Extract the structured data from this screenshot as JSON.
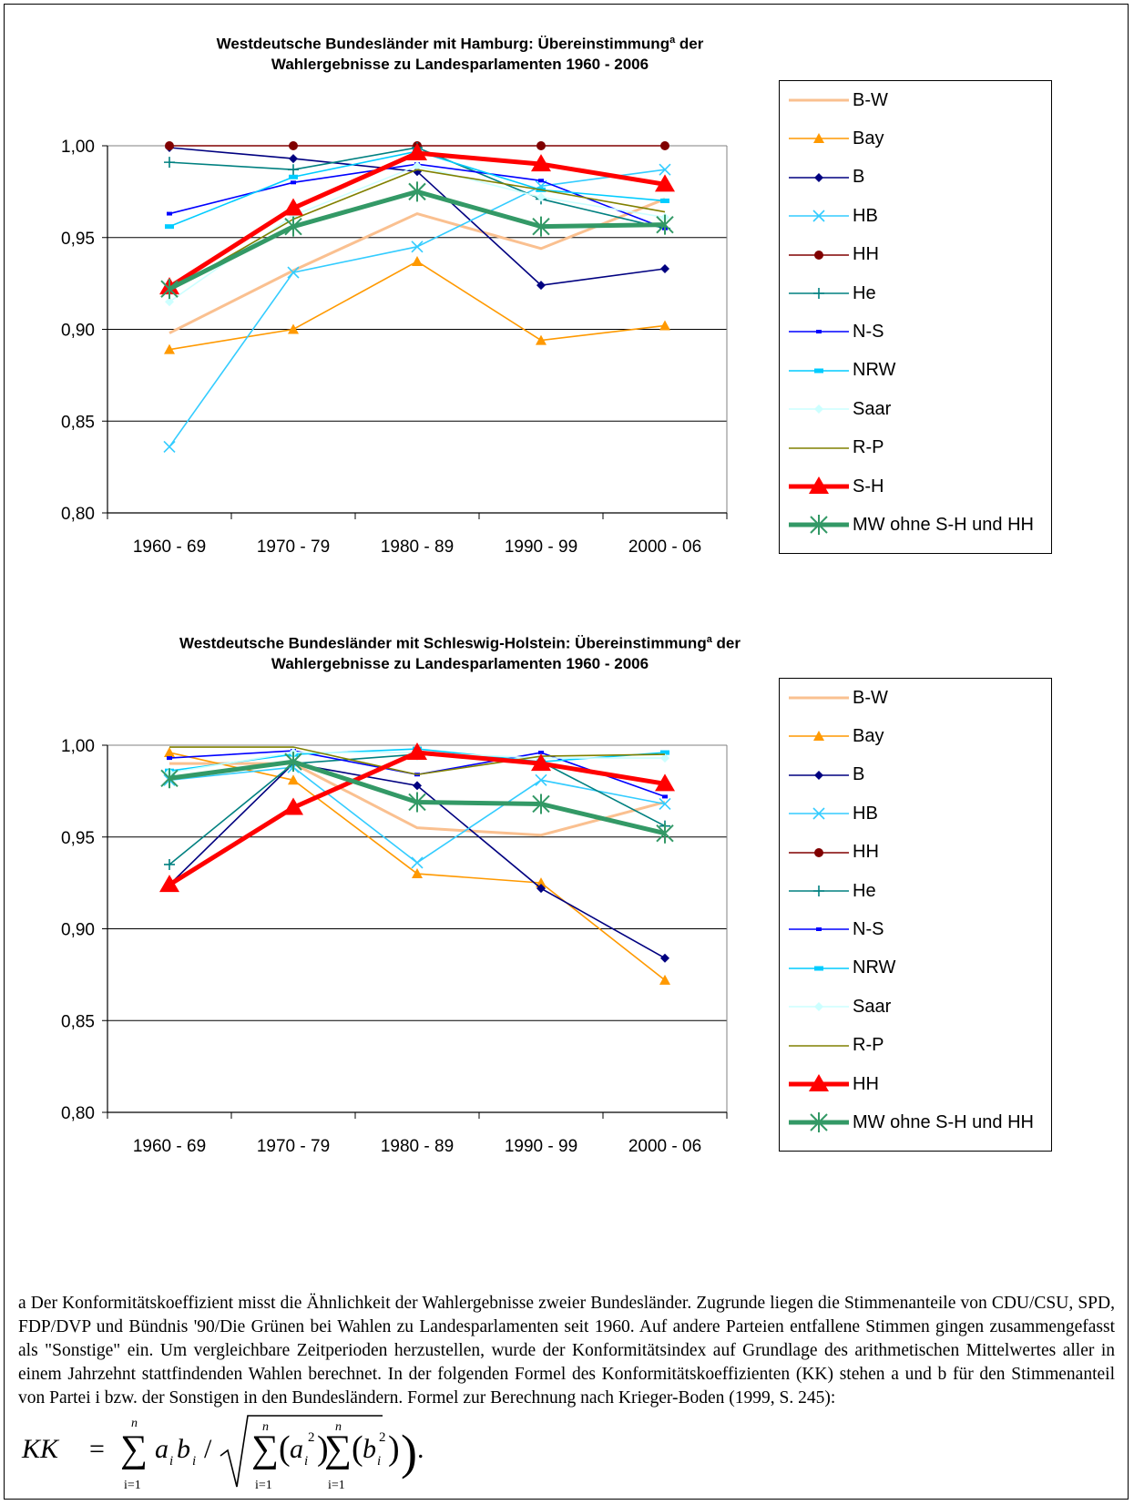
{
  "chart_data": [
    {
      "type": "line",
      "title_parts": {
        "line1_pre": "Westdeutsche Bundesländer mit Hamburg: Übereinstimmung",
        "sup": "a",
        "line1_post": " der",
        "line2": "Wahlergebnisse zu Landesparlamenten 1960 - 2006"
      },
      "categories": [
        "1960 - 69",
        "1970 - 79",
        "1980 - 89",
        "1990 - 99",
        "2000 - 06"
      ],
      "ylim": [
        0.8,
        1.0
      ],
      "yticks": [
        "1,00",
        "0,95",
        "0,90",
        "0,85",
        "0,80"
      ],
      "ytick_values": [
        1.0,
        0.95,
        0.9,
        0.85,
        0.8
      ],
      "grid": true,
      "legend_position": "right",
      "series": [
        {
          "name": "B-W",
          "color": "#FAC090",
          "marker": "none",
          "values": [
            0.898,
            0.932,
            0.963,
            0.944,
            0.971
          ]
        },
        {
          "name": "Bay",
          "color": "#FF9900",
          "marker": "triangle",
          "values": [
            0.889,
            0.9,
            0.937,
            0.894,
            0.902
          ]
        },
        {
          "name": "B",
          "color": "#000080",
          "marker": "diamond",
          "values": [
            0.999,
            0.993,
            0.986,
            0.924,
            0.933
          ]
        },
        {
          "name": "HB",
          "color": "#33CCFF",
          "marker": "x",
          "values": [
            0.836,
            0.931,
            0.945,
            0.978,
            0.987
          ]
        },
        {
          "name": "HH",
          "color": "#800000",
          "marker": "circle",
          "values": [
            1.0,
            1.0,
            1.0,
            1.0,
            1.0
          ]
        },
        {
          "name": "He",
          "color": "#008080",
          "marker": "plus",
          "values": [
            0.991,
            0.987,
            0.999,
            0.971,
            0.955
          ]
        },
        {
          "name": "N-S",
          "color": "#0000FF",
          "marker": "dash",
          "values": [
            0.963,
            0.98,
            0.99,
            0.981,
            0.955
          ]
        },
        {
          "name": "NRW",
          "color": "#00CCFF",
          "marker": "square",
          "values": [
            0.956,
            0.983,
            0.997,
            0.976,
            0.97
          ]
        },
        {
          "name": "Saar",
          "color": "#CCFFFF",
          "marker": "diamond",
          "values": [
            0.915,
            0.962,
            0.989,
            0.972,
            0.961
          ]
        },
        {
          "name": "R-P",
          "color": "#808000",
          "marker": "none",
          "values": [
            0.921,
            0.96,
            0.987,
            0.976,
            0.964
          ]
        },
        {
          "name": "S-H",
          "color": "#FF0000",
          "marker": "triangle-big",
          "values": [
            0.923,
            0.966,
            0.996,
            0.99,
            0.979
          ]
        },
        {
          "name": "MW ohne S-H und HH",
          "color": "#339966",
          "marker": "star",
          "values": [
            0.922,
            0.956,
            0.975,
            0.956,
            0.957
          ]
        }
      ]
    },
    {
      "type": "line",
      "title_parts": {
        "line1_pre": "Westdeutsche Bundesländer  mit Schleswig-Holstein: Übereinstimmung",
        "sup": "a",
        "line1_post": " der",
        "line2": "Wahlergebnisse zu Landesparlamenten 1960 - 2006"
      },
      "categories": [
        "1960 - 69",
        "1970 - 79",
        "1980 - 89",
        "1990 - 99",
        "2000 - 06"
      ],
      "ylim": [
        0.8,
        1.0
      ],
      "yticks": [
        "1,00",
        "0,95",
        "0,90",
        "0,85",
        "0,80"
      ],
      "ytick_values": [
        1.0,
        0.95,
        0.9,
        0.85,
        0.8
      ],
      "grid": true,
      "legend_position": "right",
      "series": [
        {
          "name": "B-W",
          "color": "#FAC090",
          "marker": "none",
          "values": [
            0.99,
            0.99,
            0.955,
            0.951,
            0.969
          ]
        },
        {
          "name": "Bay",
          "color": "#FF9900",
          "marker": "triangle",
          "values": [
            0.996,
            0.981,
            0.93,
            0.925,
            0.872
          ]
        },
        {
          "name": "B",
          "color": "#000080",
          "marker": "diamond",
          "values": [
            0.924,
            0.99,
            0.978,
            0.922,
            0.884
          ]
        },
        {
          "name": "HB",
          "color": "#33CCFF",
          "marker": "x",
          "values": [
            0.981,
            0.988,
            0.936,
            0.981,
            0.968
          ]
        },
        {
          "name": "HH",
          "color": "#800000",
          "marker": "circle",
          "values": [
            0.924,
            0.966,
            0.996,
            0.99,
            0.979
          ]
        },
        {
          "name": "He",
          "color": "#008080",
          "marker": "plus",
          "values": [
            0.935,
            0.99,
            0.995,
            0.991,
            0.956
          ]
        },
        {
          "name": "N-S",
          "color": "#0000FF",
          "marker": "dash",
          "values": [
            0.993,
            0.997,
            0.984,
            0.996,
            0.972
          ]
        },
        {
          "name": "NRW",
          "color": "#00CCFF",
          "marker": "square",
          "values": [
            0.986,
            0.995,
            0.998,
            0.991,
            0.996
          ]
        },
        {
          "name": "Saar",
          "color": "#CCFFFF",
          "marker": "diamond",
          "values": [
            0.985,
            0.996,
            0.996,
            0.993,
            0.993
          ]
        },
        {
          "name": "R-P",
          "color": "#808000",
          "marker": "none",
          "values": [
            0.999,
            0.999,
            0.984,
            0.994,
            0.995
          ]
        },
        {
          "name": "HH",
          "color": "#FF0000",
          "marker": "triangle-big",
          "values": [
            0.924,
            0.966,
            0.996,
            0.99,
            0.979
          ]
        },
        {
          "name": "MW ohne S-H und HH",
          "color": "#339966",
          "marker": "star",
          "values": [
            0.982,
            0.991,
            0.969,
            0.968,
            0.952
          ]
        }
      ]
    }
  ],
  "footnote": "a Der Konformitätskoeffizient misst die Ähnlichkeit der Wahlergebnisse zweier Bundesländer. Zugrunde liegen die Stimmenanteile von CDU/CSU, SPD, FDP/DVP und Bündnis '90/Die Grünen bei Wahlen zu Landesparlamenten seit 1960. Auf andere Parteien entfallene Stimmen gingen zusammengefasst als \"Sonstige\" ein. Um vergleichbare Zeitperioden herzustellen, wurde der Konformitätsindex auf Grundlage des arithmetischen Mittelwertes aller in einem Jahrzehnt stattfindenden Wahlen berechnet. In der folgenden Formel des Konformitätskoeffizienten (KK) stehen a und b für den Stimmenanteil von Partei i bzw. der Sonstigen in den Bundesländern. Formel zur Berechnung nach Krieger-Boden (1999, S. 245):",
  "formula": {
    "lhs": "KK",
    "eq": "=",
    "sum_top": "n",
    "sum_bottom": "i=1",
    "a": "a",
    "b": "b",
    "i": "i",
    "two": "2",
    "slash": "/",
    "period": "."
  }
}
